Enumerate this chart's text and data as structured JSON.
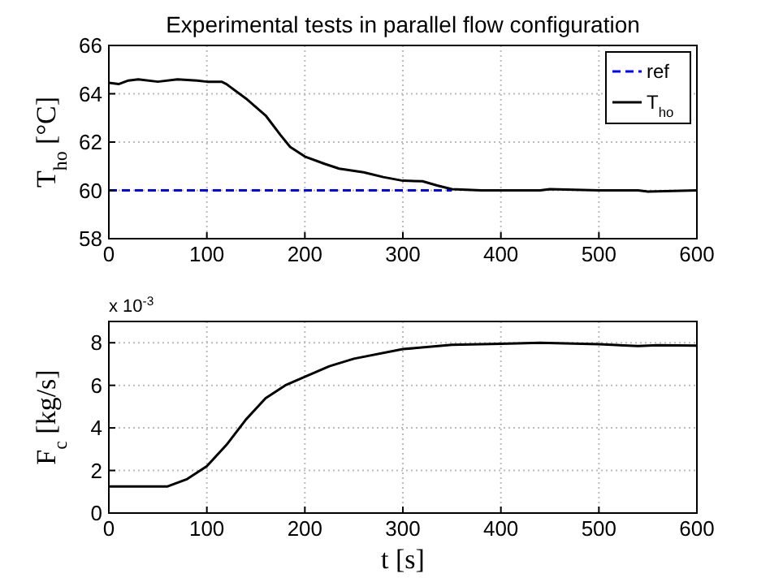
{
  "chart_data": [
    {
      "type": "line",
      "title": "Experimental tests in parallel flow configuration",
      "ylabel": "T$_{ho}$  [°C]",
      "xlim": [
        0,
        600
      ],
      "xticks": [
        0,
        100,
        200,
        300,
        400,
        500,
        600
      ],
      "ylim": [
        58,
        66
      ],
      "yticks": [
        58,
        60,
        62,
        64,
        66
      ],
      "grid": true,
      "legend": "top right",
      "series": [
        {
          "name": "ref",
          "color": "#0000ff",
          "line_style": "dashed",
          "x": [
            0,
            350
          ],
          "values": [
            60,
            60
          ]
        },
        {
          "name": "T$_{ho}$",
          "color": "#000000",
          "line_style": "solid",
          "x": [
            0,
            10,
            20,
            30,
            50,
            70,
            90,
            100,
            115,
            120,
            140,
            160,
            175,
            185,
            200,
            220,
            235,
            260,
            280,
            300,
            320,
            335,
            350,
            380,
            440,
            450,
            500,
            540,
            550,
            600
          ],
          "values": [
            64.45,
            64.4,
            64.55,
            64.6,
            64.5,
            64.6,
            64.55,
            64.5,
            64.5,
            64.4,
            63.8,
            63.1,
            62.3,
            61.8,
            61.4,
            61.1,
            60.9,
            60.75,
            60.55,
            60.4,
            60.38,
            60.2,
            60.05,
            60.0,
            60.0,
            60.05,
            60.0,
            60.0,
            59.95,
            60.0
          ]
        }
      ]
    },
    {
      "type": "line",
      "xlabel": "t  [s]",
      "ylabel": "F$_{c}$  [kg/s]",
      "annotations": [
        "x 10$^{-3}$"
      ],
      "xlim": [
        0,
        600
      ],
      "xticks": [
        0,
        100,
        200,
        300,
        400,
        500,
        600
      ],
      "ylim": [
        0,
        9
      ],
      "yticks": [
        0,
        2,
        4,
        6,
        8
      ],
      "grid": true,
      "series": [
        {
          "color": "#000000",
          "x": [
            0,
            60,
            80,
            100,
            120,
            140,
            160,
            180,
            200,
            225,
            250,
            300,
            350,
            400,
            440,
            500,
            540,
            560,
            600
          ],
          "values": [
            1.25,
            1.25,
            1.6,
            2.2,
            3.2,
            4.4,
            5.4,
            6.0,
            6.4,
            6.9,
            7.25,
            7.7,
            7.9,
            7.95,
            8.0,
            7.93,
            7.85,
            7.88,
            7.87
          ]
        }
      ]
    }
  ]
}
